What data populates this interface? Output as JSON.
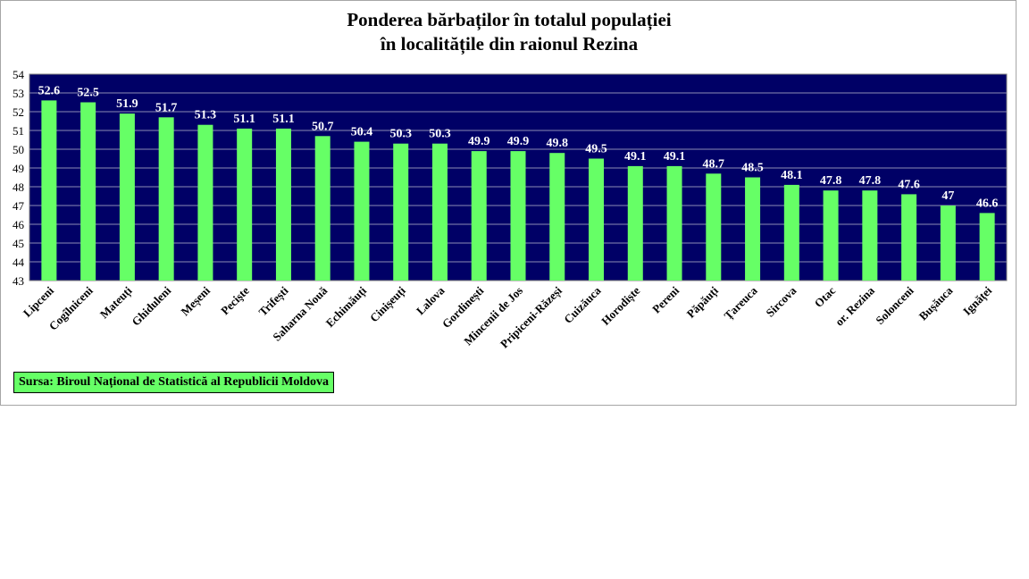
{
  "chart_data": {
    "type": "bar",
    "title_lines": [
      "Ponderea bărbaților în totalul populației",
      "în localitățile din raionul Rezina"
    ],
    "categories": [
      "Lipceni",
      "Cogîlniceni",
      "Mateuți",
      "Ghiduleni",
      "Meșeni",
      "Pecişte",
      "Trifești",
      "Saharna Nouă",
      "Echimăuți",
      "Cinișeuți",
      "Lalova",
      "Gordinești",
      "Mincenii de Jos",
      "Pripiceni-Răzeși",
      "Cuizăuca",
      "Horodiște",
      "Pereni",
      "Păpăuți",
      "Țareuca",
      "Sircova",
      "Otac",
      "or. Rezina",
      "Solonceni",
      "Bușăuca",
      "Ignăței"
    ],
    "values": [
      52.6,
      52.5,
      51.9,
      51.7,
      51.3,
      51.1,
      51.1,
      50.7,
      50.4,
      50.3,
      50.3,
      49.9,
      49.9,
      49.8,
      49.5,
      49.1,
      49.1,
      48.7,
      48.5,
      48.1,
      47.8,
      47.8,
      47.6,
      47,
      46.6
    ],
    "ylim": [
      43,
      54
    ],
    "yticks": [
      43,
      44,
      45,
      46,
      47,
      48,
      49,
      50,
      51,
      52,
      53,
      54
    ],
    "xlabel": "",
    "ylabel": "",
    "grid": true,
    "colors": {
      "bar": "#66ff66",
      "plot_bg": "#000066",
      "label": "#ffffff",
      "grid": "#8c8cb4"
    }
  },
  "source": "Sursa: Biroul Național de Statistică al Republicii Moldova"
}
